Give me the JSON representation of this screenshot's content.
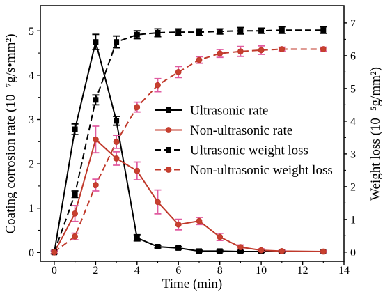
{
  "chart_data": {
    "type": "line",
    "xlabel": "Time (min)",
    "ylabel": "Coating corrosion rate (10⁻⁷g/s•mm²)",
    "ylabel_right": "Weight loss (10⁻⁵g/mm²)",
    "xlim": [
      -0.67,
      14
    ],
    "ylim": [
      -0.2,
      5.57
    ],
    "ylim_right": [
      -0.28,
      7.53
    ],
    "x_ticks": [
      0,
      2,
      4,
      6,
      8,
      10,
      12,
      14
    ],
    "y_ticks": [
      0,
      1,
      2,
      3,
      4,
      5
    ],
    "y_ticks_right": [
      0,
      1,
      2,
      3,
      4,
      5,
      6,
      7
    ],
    "grid": false,
    "legend_position": "center-right",
    "x": [
      0,
      1,
      2,
      3,
      4,
      5,
      6,
      7,
      8,
      9,
      10,
      11,
      13
    ],
    "series": [
      {
        "name": "Ultrasonic rate",
        "y_axis": "left",
        "line_style": "solid",
        "marker": "square",
        "color": "#000000",
        "error_color": "#000000",
        "values": [
          0,
          2.78,
          4.75,
          2.97,
          0.33,
          0.13,
          0.1,
          0.03,
          0.03,
          0.02,
          0.02,
          0.02,
          0.02
        ],
        "errors": [
          0.03,
          0.12,
          0.17,
          0.1,
          0.07,
          0.03,
          0.03,
          0.02,
          0.02,
          0.02,
          0.02,
          0.02,
          0.02
        ]
      },
      {
        "name": "Non-ultrasonic rate",
        "y_axis": "left",
        "line_style": "solid",
        "marker": "circle",
        "color": "#c0392b",
        "error_color": "#e05ba0",
        "values": [
          0,
          0.88,
          2.55,
          2.12,
          1.84,
          1.14,
          0.63,
          0.71,
          0.35,
          0.12,
          0.05,
          0.03,
          0.02
        ],
        "errors": [
          0.03,
          0.18,
          0.3,
          0.15,
          0.2,
          0.27,
          0.12,
          0.08,
          0.08,
          0.05,
          0.03,
          0.02,
          0.02
        ]
      },
      {
        "name": "Ultrasonic weight loss",
        "y_axis": "right",
        "line_style": "dashed",
        "marker": "square",
        "color": "#000000",
        "error_color": "#000000",
        "values": [
          0,
          1.77,
          4.65,
          6.42,
          6.64,
          6.7,
          6.72,
          6.72,
          6.74,
          6.76,
          6.76,
          6.78,
          6.78
        ],
        "errors": [
          0.05,
          0.1,
          0.15,
          0.18,
          0.12,
          0.12,
          0.1,
          0.1,
          0.08,
          0.1,
          0.08,
          0.1,
          0.1
        ]
      },
      {
        "name": "Non-ultrasonic weight loss",
        "y_axis": "right",
        "line_style": "dashed",
        "marker": "circle",
        "color": "#c0392b",
        "error_color": "#e05ba0",
        "values": [
          0,
          0.48,
          2.05,
          3.37,
          4.43,
          5.1,
          5.5,
          5.87,
          6.07,
          6.13,
          6.17,
          6.2,
          6.2
        ],
        "errors": [
          0.05,
          0.1,
          0.18,
          0.2,
          0.15,
          0.2,
          0.17,
          0.1,
          0.12,
          0.15,
          0.13,
          0.06,
          0.06
        ]
      }
    ]
  }
}
